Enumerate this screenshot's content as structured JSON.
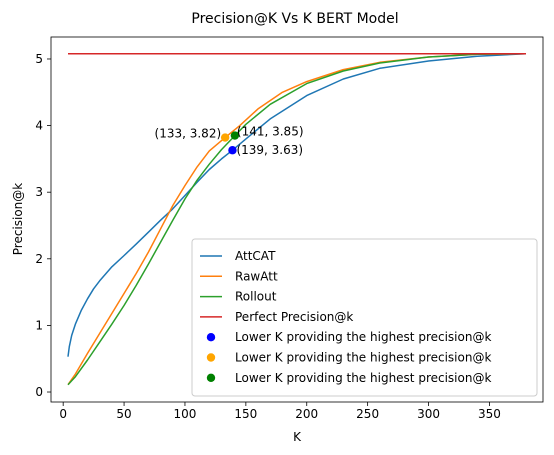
{
  "chart_data": {
    "type": "line",
    "title": "Precision@K Vs K BERT Model",
    "xlabel": "K",
    "ylabel": "Precision@k",
    "xlim": [
      -10,
      394
    ],
    "ylim": [
      -0.15,
      5.33
    ],
    "xticks": [
      "0",
      "50",
      "100",
      "150",
      "200",
      "250",
      "300",
      "350"
    ],
    "xtick_values": [
      0,
      50,
      100,
      150,
      200,
      250,
      300,
      350
    ],
    "yticks": [
      "0",
      "1",
      "2",
      "3",
      "4",
      "5"
    ],
    "ytick_values": [
      0,
      1,
      2,
      3,
      4,
      5
    ],
    "grid": false,
    "legend_position": "lower-right",
    "series": [
      {
        "name": "AttCAT",
        "color": "#1f77b4",
        "x": [
          4,
          5,
          7,
          10,
          15,
          20,
          25,
          30,
          40,
          50,
          60,
          70,
          80,
          90,
          100,
          110,
          120,
          130,
          139,
          150,
          170,
          200,
          230,
          260,
          300,
          340,
          380
        ],
        "y": [
          0.53,
          0.68,
          0.85,
          1.02,
          1.23,
          1.4,
          1.55,
          1.67,
          1.88,
          2.05,
          2.22,
          2.4,
          2.58,
          2.75,
          2.95,
          3.15,
          3.34,
          3.5,
          3.63,
          3.8,
          4.1,
          4.45,
          4.7,
          4.86,
          4.97,
          5.04,
          5.08
        ]
      },
      {
        "name": "RawAtt",
        "color": "#ff7f0e",
        "x": [
          4,
          10,
          20,
          30,
          40,
          50,
          60,
          70,
          80,
          90,
          100,
          110,
          120,
          133,
          145,
          160,
          180,
          200,
          230,
          260,
          300,
          340,
          380
        ],
        "y": [
          0.11,
          0.27,
          0.58,
          0.88,
          1.18,
          1.48,
          1.78,
          2.1,
          2.45,
          2.8,
          3.1,
          3.38,
          3.62,
          3.82,
          4.0,
          4.25,
          4.5,
          4.66,
          4.84,
          4.95,
          5.03,
          5.07,
          5.08
        ]
      },
      {
        "name": "Rollout",
        "color": "#2ca02c",
        "x": [
          4,
          10,
          20,
          30,
          40,
          50,
          60,
          70,
          80,
          90,
          100,
          110,
          120,
          130,
          141,
          150,
          170,
          200,
          230,
          260,
          300,
          340,
          380
        ],
        "y": [
          0.11,
          0.23,
          0.48,
          0.75,
          1.02,
          1.3,
          1.6,
          1.92,
          2.25,
          2.58,
          2.9,
          3.18,
          3.42,
          3.64,
          3.85,
          4.02,
          4.32,
          4.63,
          4.82,
          4.94,
          5.03,
          5.07,
          5.08
        ]
      },
      {
        "name": "Perfect Precision@k",
        "color": "#d62728",
        "x": [
          4,
          380
        ],
        "y": [
          5.08,
          5.08
        ]
      }
    ],
    "points": [
      {
        "name": "Lower K providing the highest precision@k",
        "color": "#0000ff",
        "x": 139,
        "y": 3.63,
        "label": "(139, 3.63)"
      },
      {
        "name": "Lower K providing the highest precision@k",
        "color": "#ffa500",
        "x": 133,
        "y": 3.82,
        "label": "(133, 3.82)"
      },
      {
        "name": "Lower K providing the highest precision@k",
        "color": "#008000",
        "x": 141,
        "y": 3.85,
        "label": "(141, 3.85)"
      }
    ]
  }
}
